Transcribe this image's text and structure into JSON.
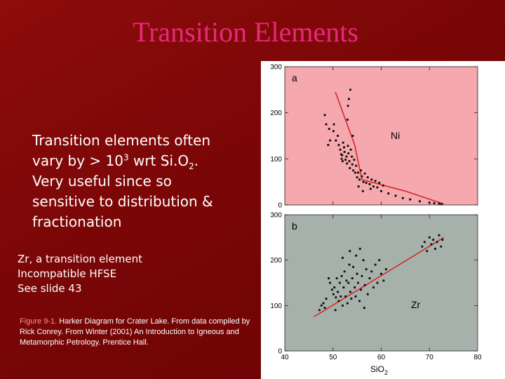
{
  "slide": {
    "title": "Transition Elements",
    "body_lines": [
      "Transition elements  often",
      "vary by > 10",
      "3",
      "  wrt Si.O",
      "2",
      ".",
      "Very useful since so",
      "sensitive to distribution &",
      "fractionation"
    ],
    "sub_lines": [
      "Zr,  a transition element",
      "Incompatible HFSE",
      "See slide 43"
    ],
    "caption_label": "Figure 9-1.",
    "caption_text": " Harker Diagram for Crater Lake. From data compiled by Rick Conrey. From Winter (2001) An Introduction to Igneous and Metamorphic Petrology. Prentice Hall."
  },
  "colors": {
    "background": "#7a0606",
    "title": "#e8297a",
    "panel_a_bg": "#f5a8ad",
    "panel_b_bg": "#a7b1ab",
    "trend_line": "#d42a2a",
    "points": "#111111"
  },
  "chart_data": [
    {
      "type": "scatter",
      "panel_label": "a",
      "series_label": "Ni",
      "xlim": [
        40,
        80
      ],
      "ylim": [
        0,
        300
      ],
      "yticks": [
        0,
        100,
        200,
        300
      ],
      "trend": [
        [
          50.5,
          245
        ],
        [
          54.5,
          130
        ],
        [
          56,
          55
        ],
        [
          65,
          30
        ],
        [
          73,
          2
        ]
      ],
      "points": [
        [
          48.3,
          195
        ],
        [
          48.6,
          175
        ],
        [
          49.2,
          165
        ],
        [
          49.4,
          140
        ],
        [
          49.0,
          130
        ],
        [
          50.1,
          160
        ],
        [
          50.6,
          140
        ],
        [
          51.0,
          150
        ],
        [
          51.2,
          130
        ],
        [
          51.5,
          120
        ],
        [
          51.7,
          110
        ],
        [
          51.9,
          108
        ],
        [
          52.1,
          135
        ],
        [
          52.3,
          125
        ],
        [
          52.4,
          115
        ],
        [
          52.6,
          98
        ],
        [
          52.8,
          105
        ],
        [
          52.9,
          90
        ],
        [
          53.1,
          128
        ],
        [
          53.2,
          112
        ],
        [
          53.4,
          95
        ],
        [
          53.5,
          80
        ],
        [
          53.7,
          120
        ],
        [
          53.9,
          105
        ],
        [
          54.0,
          88
        ],
        [
          54.2,
          75
        ],
        [
          54.4,
          98
        ],
        [
          54.6,
          70
        ],
        [
          54.8,
          85
        ],
        [
          55.0,
          60
        ],
        [
          55.2,
          70
        ],
        [
          55.5,
          55
        ],
        [
          55.8,
          75
        ],
        [
          56.0,
          62
        ],
        [
          56.3,
          50
        ],
        [
          56.6,
          68
        ],
        [
          56.9,
          48
        ],
        [
          57.2,
          60
        ],
        [
          57.6,
          45
        ],
        [
          58.0,
          55
        ],
        [
          58.4,
          40
        ],
        [
          58.8,
          52
        ],
        [
          59.2,
          38
        ],
        [
          59.6,
          48
        ],
        [
          60.0,
          30
        ],
        [
          60.4,
          42
        ],
        [
          53.1,
          215
        ],
        [
          53.3,
          230
        ],
        [
          53.6,
          250
        ],
        [
          53.0,
          185
        ],
        [
          54.1,
          150
        ],
        [
          51.8,
          100
        ],
        [
          50.2,
          175
        ],
        [
          52.0,
          95
        ],
        [
          55.3,
          40
        ],
        [
          56.2,
          30
        ],
        [
          57.8,
          35
        ],
        [
          61.5,
          25
        ],
        [
          63.0,
          20
        ],
        [
          64.5,
          15
        ],
        [
          66.0,
          12
        ],
        [
          68.0,
          8
        ],
        [
          70.0,
          5
        ],
        [
          71.0,
          4
        ],
        [
          72.0,
          3
        ],
        [
          72.5,
          2
        ]
      ]
    },
    {
      "type": "scatter",
      "panel_label": "b",
      "series_label": "Zr",
      "xlim": [
        40,
        80
      ],
      "ylim": [
        0,
        300
      ],
      "xticks": [
        40,
        50,
        60,
        70,
        80
      ],
      "yticks": [
        0,
        100,
        200,
        300
      ],
      "xlabel_main": "SiO",
      "xlabel_sub": "2",
      "trend": [
        [
          46,
          75
        ],
        [
          73,
          250
        ]
      ],
      "points": [
        [
          47.2,
          90
        ],
        [
          47.6,
          100
        ],
        [
          48.0,
          105
        ],
        [
          48.3,
          95
        ],
        [
          48.6,
          115
        ],
        [
          49.1,
          160
        ],
        [
          49.4,
          150
        ],
        [
          49.8,
          135
        ],
        [
          50.1,
          125
        ],
        [
          50.3,
          140
        ],
        [
          50.6,
          118
        ],
        [
          50.8,
          160
        ],
        [
          51.0,
          130
        ],
        [
          51.2,
          110
        ],
        [
          51.4,
          150
        ],
        [
          51.6,
          120
        ],
        [
          51.8,
          165
        ],
        [
          52.0,
          100
        ],
        [
          52.2,
          140
        ],
        [
          52.4,
          175
        ],
        [
          52.6,
          120
        ],
        [
          52.8,
          155
        ],
        [
          53.0,
          105
        ],
        [
          53.2,
          150
        ],
        [
          53.4,
          190
        ],
        [
          53.6,
          130
        ],
        [
          53.8,
          115
        ],
        [
          54.0,
          160
        ],
        [
          54.2,
          185
        ],
        [
          54.5,
          140
        ],
        [
          54.7,
          120
        ],
        [
          55.0,
          170
        ],
        [
          55.2,
          150
        ],
        [
          55.5,
          110
        ],
        [
          55.8,
          135
        ],
        [
          56.0,
          165
        ],
        [
          56.3,
          200
        ],
        [
          56.6,
          145
        ],
        [
          56.9,
          180
        ],
        [
          57.2,
          125
        ],
        [
          57.6,
          160
        ],
        [
          58.0,
          175
        ],
        [
          58.4,
          140
        ],
        [
          58.8,
          190
        ],
        [
          59.2,
          150
        ],
        [
          59.6,
          200
        ],
        [
          60.0,
          170
        ],
        [
          60.5,
          155
        ],
        [
          61.0,
          180
        ],
        [
          52.0,
          205
        ],
        [
          53.5,
          220
        ],
        [
          54.8,
          210
        ],
        [
          50.5,
          90
        ],
        [
          56.5,
          95
        ],
        [
          55.6,
          225
        ],
        [
          68.5,
          230
        ],
        [
          69.0,
          240
        ],
        [
          69.5,
          220
        ],
        [
          70.0,
          250
        ],
        [
          70.4,
          235
        ],
        [
          70.8,
          245
        ],
        [
          71.2,
          225
        ],
        [
          71.6,
          240
        ],
        [
          72.0,
          255
        ],
        [
          72.4,
          230
        ],
        [
          72.7,
          245
        ]
      ]
    }
  ]
}
